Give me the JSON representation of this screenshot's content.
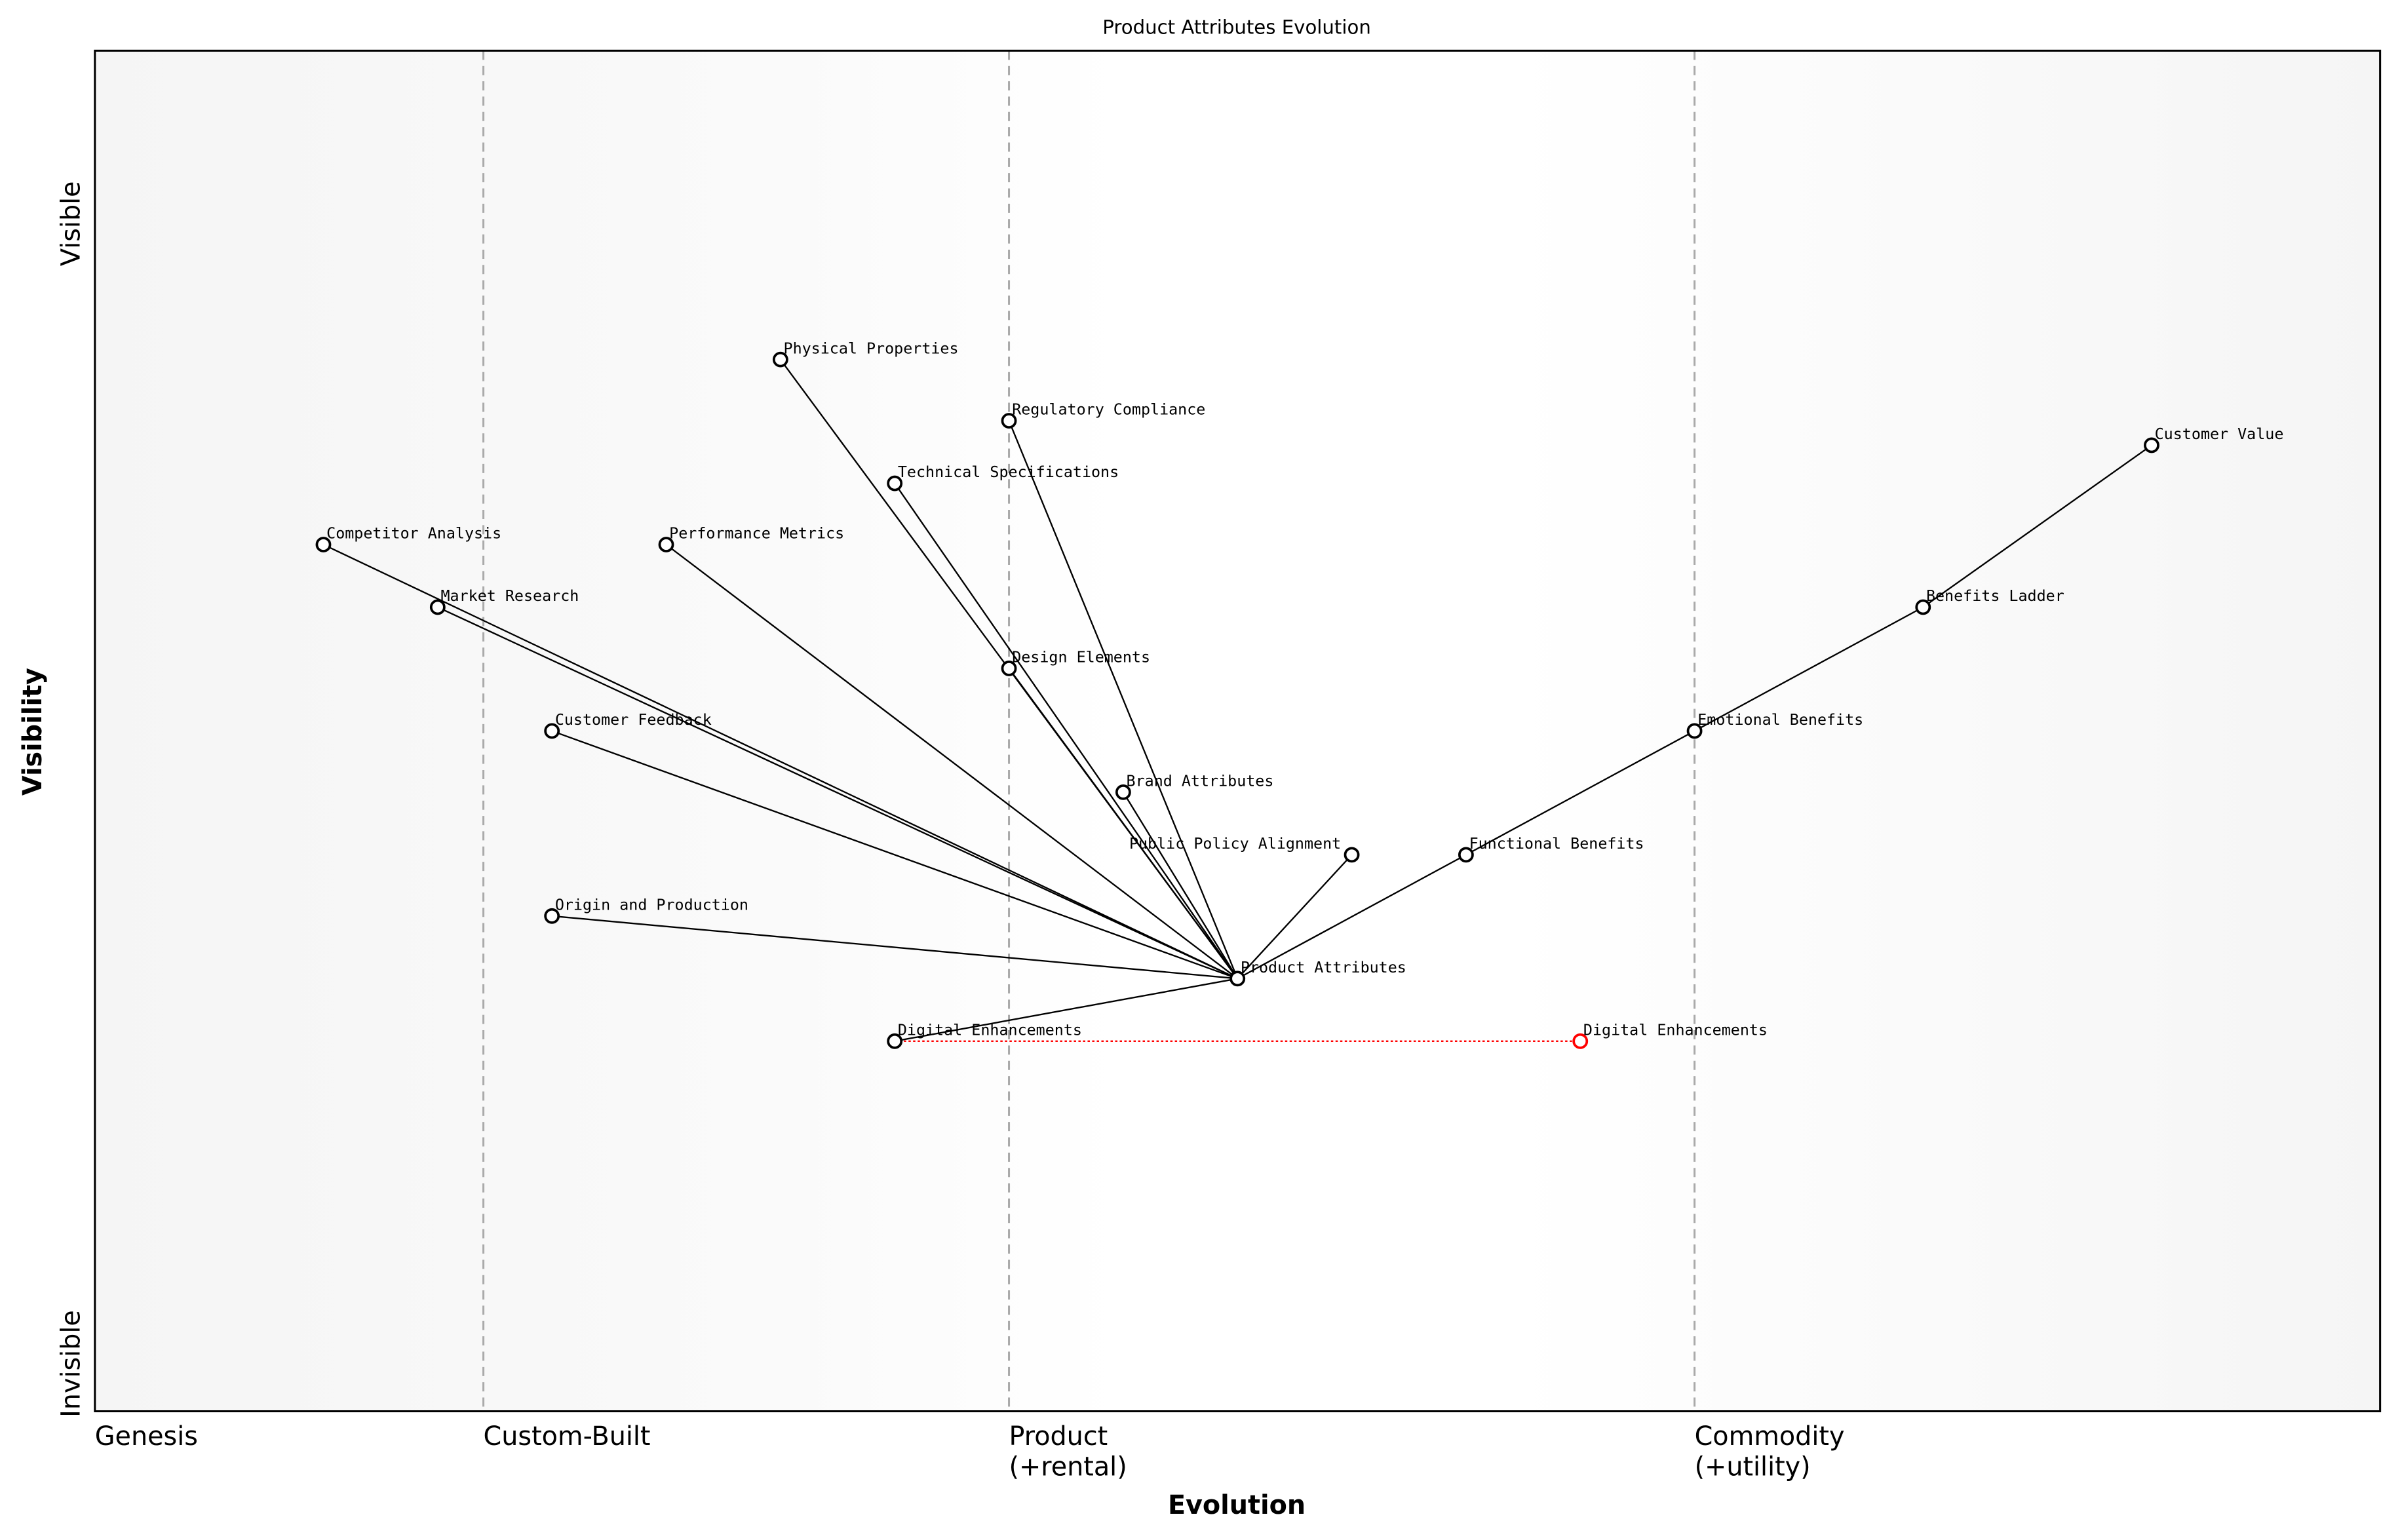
{
  "chart_data": {
    "type": "scatter",
    "subtype": "wardley-map",
    "title": "Product Attributes Evolution",
    "xlabel": "Evolution",
    "ylabel": "Visibility",
    "xlim": [
      0,
      1
    ],
    "ylim": [
      0,
      1
    ],
    "grid": false,
    "y_tick_labels": {
      "top": "Visible",
      "bottom": "Invisible"
    },
    "stages": [
      {
        "label": "Genesis",
        "x": 0.0
      },
      {
        "label": "Custom-Built",
        "x": 0.17
      },
      {
        "label": "Product\n(+rental)",
        "x": 0.4
      },
      {
        "label": "Commodity\n(+utility)",
        "x": 0.7
      }
    ],
    "colors": {
      "node": "#000000",
      "evolved_node": "#ff0000",
      "link": "#000000",
      "stage_line": "#aaaaaa",
      "background_edge": "#f5f5f5",
      "background_center": "#ffffff"
    },
    "components": [
      {
        "name": "Product Attributes",
        "x": 0.5,
        "y": 0.318
      },
      {
        "name": "Physical Properties",
        "x": 0.3,
        "y": 0.773
      },
      {
        "name": "Regulatory Compliance",
        "x": 0.4,
        "y": 0.728
      },
      {
        "name": "Technical Specifications",
        "x": 0.35,
        "y": 0.682
      },
      {
        "name": "Customer Value",
        "x": 0.9,
        "y": 0.71
      },
      {
        "name": "Competitor Analysis",
        "x": 0.1,
        "y": 0.637
      },
      {
        "name": "Performance Metrics",
        "x": 0.25,
        "y": 0.637
      },
      {
        "name": "Market Research",
        "x": 0.15,
        "y": 0.591
      },
      {
        "name": "Benefits Ladder",
        "x": 0.8,
        "y": 0.591
      },
      {
        "name": "Design Elements",
        "x": 0.4,
        "y": 0.546
      },
      {
        "name": "Customer Feedback",
        "x": 0.2,
        "y": 0.5
      },
      {
        "name": "Emotional Benefits",
        "x": 0.7,
        "y": 0.5
      },
      {
        "name": "Brand Attributes",
        "x": 0.45,
        "y": 0.455
      },
      {
        "name": "Public Policy Alignment",
        "x": 0.55,
        "y": 0.409
      },
      {
        "name": "Functional Benefits",
        "x": 0.6,
        "y": 0.409
      },
      {
        "name": "Origin and Production",
        "x": 0.2,
        "y": 0.364
      },
      {
        "name": "Digital Enhancements",
        "x": 0.35,
        "y": 0.272
      }
    ],
    "evolved_components": [
      {
        "name": "Digital Enhancements",
        "x": 0.65,
        "y": 0.272,
        "from": "Digital Enhancements"
      }
    ],
    "links": [
      [
        "Product Attributes",
        "Physical Properties"
      ],
      [
        "Product Attributes",
        "Regulatory Compliance"
      ],
      [
        "Product Attributes",
        "Technical Specifications"
      ],
      [
        "Product Attributes",
        "Competitor Analysis"
      ],
      [
        "Product Attributes",
        "Performance Metrics"
      ],
      [
        "Product Attributes",
        "Market Research"
      ],
      [
        "Product Attributes",
        "Design Elements"
      ],
      [
        "Product Attributes",
        "Customer Feedback"
      ],
      [
        "Product Attributes",
        "Brand Attributes"
      ],
      [
        "Product Attributes",
        "Public Policy Alignment"
      ],
      [
        "Product Attributes",
        "Functional Benefits"
      ],
      [
        "Product Attributes",
        "Origin and Production"
      ],
      [
        "Product Attributes",
        "Digital Enhancements"
      ],
      [
        "Functional Benefits",
        "Emotional Benefits"
      ],
      [
        "Emotional Benefits",
        "Benefits Ladder"
      ],
      [
        "Benefits Ladder",
        "Customer Value"
      ]
    ]
  }
}
